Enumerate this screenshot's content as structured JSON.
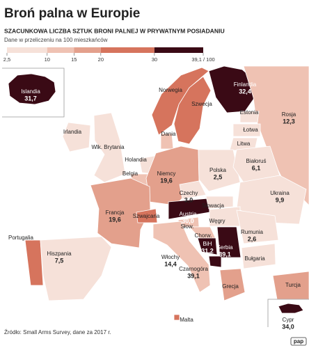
{
  "title": "Broń palna w Europie",
  "subtitle": "SZACUNKOWA LICZBA SZTUK BRONI PALNEJ W PRYWATNYM POSIADANIU",
  "note": "Dane w przeliczeniu na 100 mieszkańców",
  "legend": {
    "ticks": [
      {
        "value": 2.5,
        "label": "2,5"
      },
      10,
      15,
      20,
      30,
      {
        "value": 39.1,
        "label": "39,1 / 100"
      }
    ],
    "colors": [
      "#f6e1d9",
      "#efc2b3",
      "#e3a08c",
      "#d6745d",
      "#3a0a15"
    ]
  },
  "regions": [
    {
      "name": "Islandia",
      "value": 31.7,
      "value_label": "31,7",
      "color": "#3a0a15"
    },
    {
      "name": "Norwegia",
      "color": "#d6745d"
    },
    {
      "name": "Szwecja",
      "color": "#d6745d"
    },
    {
      "name": "Finlandia",
      "value": 32.4,
      "value_label": "32,4",
      "color": "#3a0a15"
    },
    {
      "name": "Rosja",
      "value": 12.3,
      "value_label": "12,3",
      "color": "#efc2b3"
    },
    {
      "name": "Estonia",
      "color": "#f6e1d9"
    },
    {
      "name": "Łotwa",
      "color": "#f6e1d9"
    },
    {
      "name": "Litwa",
      "color": "#f6e1d9"
    },
    {
      "name": "Dania",
      "color": "#efc2b3"
    },
    {
      "name": "Irlandia",
      "color": "#f6e1d9"
    },
    {
      "name": "Wlk. Brytania",
      "color": "#f6e1d9"
    },
    {
      "name": "Holandia",
      "color": "#f6e1d9"
    },
    {
      "name": "Belgia",
      "color": "#efc2b3"
    },
    {
      "name": "Niemcy",
      "value": 19.6,
      "value_label": "19,6",
      "color": "#e3a08c"
    },
    {
      "name": "Polska",
      "value": 2.5,
      "value_label": "2,5",
      "color": "#f6e1d9"
    },
    {
      "name": "Białoruś",
      "value": 6.1,
      "value_label": "6,1",
      "color": "#f6e1d9"
    },
    {
      "name": "Czechy",
      "value": 3.0,
      "value_label": "3,0",
      "color": "#f6e1d9"
    },
    {
      "name": "Ukraina",
      "value": 9.9,
      "value_label": "9,9",
      "color": "#f6e1d9"
    },
    {
      "name": "Francja",
      "value": 19.6,
      "value_label": "19,6",
      "color": "#e3a08c"
    },
    {
      "name": "Austria",
      "value": 30.0,
      "value_label": "30,0",
      "color": "#3a0a15"
    },
    {
      "name": "Słowacja",
      "color": "#f6e1d9"
    },
    {
      "name": "Szwajcaria",
      "color": "#d6745d"
    },
    {
      "name": "Słow.",
      "color": "#efc2b3"
    },
    {
      "name": "Węgry",
      "color": "#f6e1d9"
    },
    {
      "name": "Rumunia",
      "value": 2.6,
      "value_label": "2,6",
      "color": "#f6e1d9"
    },
    {
      "name": "Chorw.",
      "color": "#efc2b3"
    },
    {
      "name": "BiH",
      "value": 31.2,
      "value_label": "31,2",
      "color": "#3a0a15"
    },
    {
      "name": "Serbia",
      "value": 39.1,
      "value_label": "39,1",
      "color": "#3a0a15"
    },
    {
      "name": "Portugalia",
      "color": "#d6745d"
    },
    {
      "name": "Hiszpania",
      "value": 7.5,
      "value_label": "7,5",
      "color": "#f6e1d9"
    },
    {
      "name": "Włochy",
      "value": 14.4,
      "value_label": "14,4",
      "color": "#efc2b3"
    },
    {
      "name": "Czarnogóra",
      "value": 39.1,
      "value_label": "39,1",
      "color": "#3a0a15"
    },
    {
      "name": "Bułgaria",
      "color": "#f6e1d9"
    },
    {
      "name": "Grecja",
      "color": "#e3a08c"
    },
    {
      "name": "Turcja",
      "color": "#e3a08c"
    },
    {
      "name": "Malta",
      "color": "#d6745d"
    },
    {
      "name": "Cypr",
      "value": 34.0,
      "value_label": "34,0",
      "color": "#3a0a15"
    }
  ],
  "source": "Źródło: Small Arms Survey, dane za 2017 r.",
  "logo": "pap"
}
